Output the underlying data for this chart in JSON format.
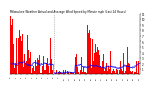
{
  "title": "Milwaukee Weather Actual and Average Wind Speed by Minute mph (Last 24 Hours)",
  "n_points": 288,
  "background_color": "#ffffff",
  "actual_color": "#ff0000",
  "avg_color": "#0000ff",
  "ymax": 11,
  "yticks": [
    1,
    2,
    3,
    4,
    5,
    6,
    7,
    8,
    9,
    10,
    11
  ],
  "bar_width": 1.0,
  "dotted_line_x": 96,
  "title_fontsize": 2.0,
  "ytick_fontsize": 2.0,
  "xtick_fontsize": 1.5
}
